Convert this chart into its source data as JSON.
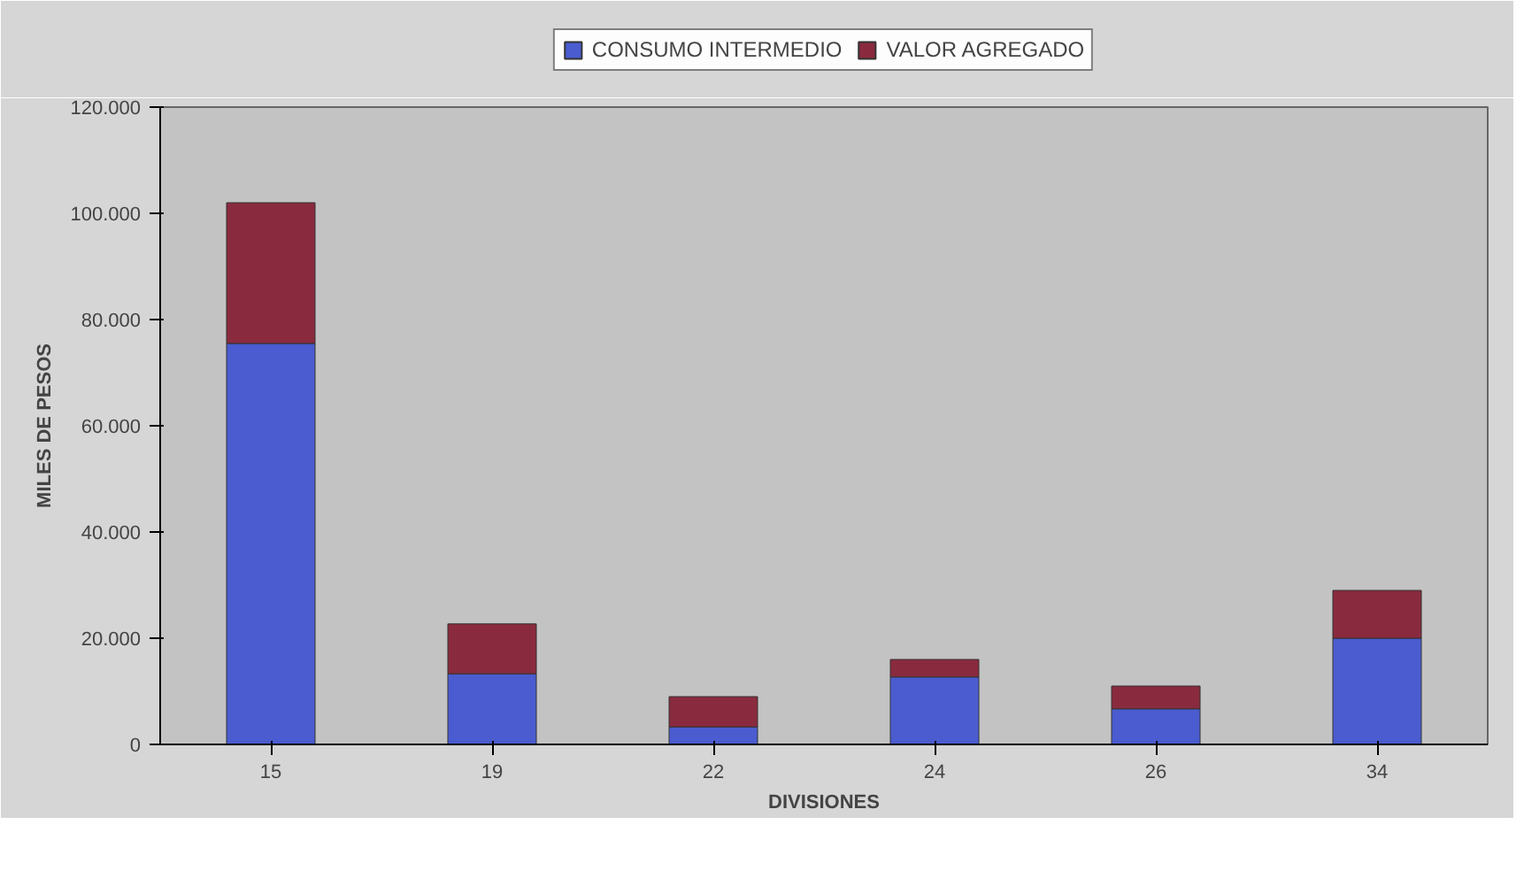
{
  "chart_data": {
    "type": "bar",
    "stacked": true,
    "xlabel": "DIVISIONES",
    "ylabel": "MILES DE PESOS",
    "categories": [
      "15",
      "19",
      "22",
      "24",
      "26",
      "34"
    ],
    "series": [
      {
        "name": "CONSUMO INTERMEDIO",
        "color": "#4a5ccf",
        "values": [
          75500,
          13300,
          3300,
          12700,
          6700,
          20000
        ]
      },
      {
        "name": "VALOR AGREGADO",
        "color": "#8a2a3e",
        "values": [
          26500,
          9400,
          5700,
          3300,
          4300,
          9000
        ]
      }
    ],
    "ylim": [
      0,
      120000
    ],
    "yticks": [
      {
        "value": 0,
        "label": "0"
      },
      {
        "value": 20000,
        "label": "20.000"
      },
      {
        "value": 40000,
        "label": "40.000"
      },
      {
        "value": 60000,
        "label": "60.000"
      },
      {
        "value": 80000,
        "label": "80.000"
      },
      {
        "value": 100000,
        "label": "100.000"
      },
      {
        "value": 120000,
        "label": "120.000"
      }
    ],
    "grid": false,
    "legend": "top"
  }
}
